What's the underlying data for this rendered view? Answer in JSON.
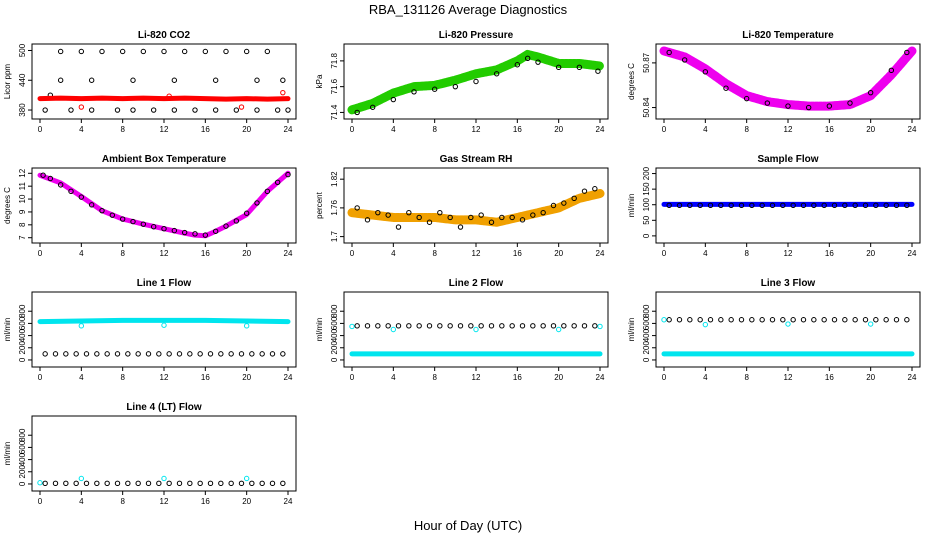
{
  "figure": {
    "title": "RBA_131126  Average Diagnostics",
    "xlabel": "Hour of Day (UTC)"
  },
  "chart_data": [
    {
      "type": "scatter",
      "title": "Li-820 CO2",
      "ylabel": "Licor ppm",
      "xlim": [
        0,
        24
      ],
      "ylim": [
        370,
        505
      ],
      "xticks": [
        0,
        4,
        8,
        12,
        16,
        20,
        24
      ],
      "yticks": [
        380,
        440,
        500
      ],
      "series": [
        {
          "color": "#000000",
          "marker": "open-circle",
          "x": [
            0.5,
            1.0,
            2.0,
            3.0,
            4.0,
            5.0,
            6.0,
            7.5,
            8.0,
            9.0,
            10.0,
            11.0,
            12.0,
            13.0,
            14.0,
            15.0,
            16.0,
            17.0,
            18.0,
            19.0,
            20.0,
            21.0,
            22.0,
            23.0,
            24.0,
            2.0,
            5.0,
            9.0,
            13.0,
            17.0,
            21.0,
            23.5
          ],
          "y": [
            380,
            410,
            498,
            380,
            498,
            380,
            498,
            380,
            498,
            380,
            498,
            380,
            498,
            380,
            498,
            380,
            498,
            380,
            498,
            380,
            498,
            380,
            498,
            380,
            380,
            440,
            440,
            440,
            440,
            440,
            440,
            440
          ]
        },
        {
          "color": "#ff0000",
          "marker": "filled-line",
          "x": [
            0,
            2,
            4,
            6,
            8,
            10,
            12,
            14,
            16,
            18,
            20,
            22,
            24
          ],
          "y": [
            403,
            404,
            403,
            404,
            403,
            404,
            403,
            404,
            403,
            402,
            403,
            402,
            403
          ]
        },
        {
          "color": "#ff0000",
          "marker": "open-circle",
          "x": [
            4.0,
            12.5,
            19.5,
            23.5
          ],
          "y": [
            386,
            408,
            386,
            415
          ]
        }
      ]
    },
    {
      "type": "scatter",
      "title": "Li-820 Pressure",
      "ylabel": "kPa",
      "xlim": [
        0,
        24
      ],
      "ylim": [
        71.38,
        71.9
      ],
      "xticks": [
        0,
        4,
        8,
        12,
        16,
        20,
        24
      ],
      "yticks": [
        71.4,
        71.6,
        71.8
      ],
      "series": [
        {
          "color": "#22cc00",
          "marker": "filled-band",
          "x": [
            0,
            2,
            4,
            6,
            8,
            10,
            12,
            14,
            16,
            17,
            18,
            20,
            22,
            24
          ],
          "y": [
            71.42,
            71.47,
            71.55,
            71.6,
            71.61,
            71.65,
            71.7,
            71.73,
            71.8,
            71.85,
            71.83,
            71.78,
            71.78,
            71.76
          ]
        },
        {
          "color": "#000000",
          "marker": "open-circle",
          "x": [
            0.5,
            2,
            4,
            6,
            8,
            10,
            12,
            14,
            16,
            17,
            18,
            20,
            22,
            23.8
          ],
          "y": [
            71.4,
            71.44,
            71.5,
            71.56,
            71.58,
            71.6,
            71.64,
            71.7,
            71.77,
            71.82,
            71.79,
            71.75,
            71.75,
            71.72
          ]
        }
      ]
    },
    {
      "type": "scatter",
      "title": "Li-820 Temperature",
      "ylabel": "degrees C",
      "xlim": [
        0,
        24
      ],
      "ylim": [
        50.835,
        50.88
      ],
      "xticks": [
        0,
        4,
        8,
        12,
        16,
        20,
        24
      ],
      "yticks": [
        50.84,
        50.87
      ],
      "series": [
        {
          "color": "#ee00ee",
          "marker": "filled-band",
          "x": [
            0,
            2,
            4,
            6,
            8,
            10,
            12,
            14,
            16,
            18,
            20,
            22,
            24
          ],
          "y": [
            50.878,
            50.874,
            50.866,
            50.856,
            50.848,
            50.844,
            50.842,
            50.841,
            50.841,
            50.842,
            50.848,
            50.862,
            50.878
          ]
        },
        {
          "color": "#000000",
          "marker": "open-circle",
          "x": [
            0.5,
            2,
            4,
            6,
            8,
            10,
            12,
            14,
            16,
            18,
            20,
            22,
            23.5
          ],
          "y": [
            50.877,
            50.872,
            50.864,
            50.853,
            50.846,
            50.843,
            50.841,
            50.84,
            50.841,
            50.843,
            50.85,
            50.865,
            50.877
          ]
        }
      ]
    },
    {
      "type": "scatter",
      "title": "Ambient Box Temperature",
      "ylabel": "degrees C",
      "xlim": [
        0,
        24
      ],
      "ylim": [
        6.9,
        12.1
      ],
      "xticks": [
        0,
        4,
        8,
        12,
        16,
        20,
        24
      ],
      "yticks": [
        7,
        8,
        9,
        10,
        11,
        12
      ],
      "series": [
        {
          "color": "#ee00ee",
          "marker": "filled-line",
          "x": [
            0,
            2,
            4,
            6,
            8,
            10,
            12,
            14,
            15,
            16,
            17,
            18,
            20,
            22,
            24
          ],
          "y": [
            11.85,
            11.25,
            10.2,
            9.1,
            8.45,
            8.05,
            7.7,
            7.35,
            7.2,
            7.15,
            7.5,
            7.9,
            8.8,
            10.6,
            12.0
          ]
        },
        {
          "color": "#000000",
          "marker": "open-circle",
          "x": [
            0.3,
            1,
            2,
            3,
            4,
            5,
            6,
            7,
            8,
            9,
            10,
            11,
            12,
            13,
            14,
            15,
            16,
            17,
            18,
            19,
            20,
            21,
            22,
            23,
            24
          ],
          "y": [
            11.85,
            11.6,
            11.1,
            10.6,
            10.15,
            9.55,
            9.1,
            8.75,
            8.45,
            8.25,
            8.05,
            7.85,
            7.7,
            7.55,
            7.4,
            7.3,
            7.2,
            7.5,
            7.9,
            8.3,
            8.9,
            9.7,
            10.6,
            11.3,
            11.9
          ]
        }
      ]
    },
    {
      "type": "scatter",
      "title": "Gas Stream RH",
      "ylabel": "percent",
      "xlim": [
        0,
        24
      ],
      "ylim": [
        1.695,
        1.835
      ],
      "xticks": [
        0,
        4,
        8,
        12,
        16,
        20,
        24
      ],
      "yticks": [
        1.7,
        1.76,
        1.82
      ],
      "series": [
        {
          "color": "#f0a000",
          "marker": "filled-band",
          "x": [
            0,
            2,
            4,
            6,
            8,
            10,
            12,
            14,
            16,
            18,
            20,
            22,
            24
          ],
          "y": [
            1.75,
            1.745,
            1.74,
            1.74,
            1.74,
            1.735,
            1.735,
            1.73,
            1.74,
            1.75,
            1.76,
            1.78,
            1.79
          ]
        },
        {
          "color": "#000000",
          "marker": "open-circle",
          "x": [
            0.5,
            1.5,
            2.5,
            3.5,
            4.5,
            5.5,
            6.5,
            7.5,
            8.5,
            9.5,
            10.5,
            11.5,
            12.5,
            13.5,
            14.5,
            15.5,
            16.5,
            17.5,
            18.5,
            19.5,
            20.5,
            21.5,
            22.5,
            23.5
          ],
          "y": [
            1.76,
            1.735,
            1.75,
            1.745,
            1.72,
            1.75,
            1.74,
            1.73,
            1.75,
            1.74,
            1.72,
            1.74,
            1.745,
            1.73,
            1.74,
            1.74,
            1.735,
            1.745,
            1.75,
            1.765,
            1.77,
            1.78,
            1.795,
            1.8
          ]
        }
      ]
    },
    {
      "type": "scatter",
      "title": "Sample Flow",
      "ylabel": "ml/min",
      "xlim": [
        0,
        24
      ],
      "ylim": [
        -10,
        205
      ],
      "xticks": [
        0,
        4,
        8,
        12,
        16,
        20,
        24
      ],
      "yticks": [
        0,
        50,
        100,
        150,
        200
      ],
      "series": [
        {
          "color": "#0000ff",
          "marker": "filled-line",
          "x": [
            0,
            24
          ],
          "y": [
            101,
            101
          ]
        },
        {
          "color": "#000000",
          "marker": "open-circle",
          "x": [
            0.5,
            1.5,
            2.5,
            3.5,
            4.5,
            5.5,
            6.5,
            7.5,
            8.5,
            9.5,
            10.5,
            11.5,
            12.5,
            13.5,
            14.5,
            15.5,
            16.5,
            17.5,
            18.5,
            19.5,
            20.5,
            21.5,
            22.5,
            23.5
          ],
          "y": [
            98,
            98,
            98,
            98,
            98,
            98,
            98,
            98,
            98,
            98,
            98,
            98,
            98,
            98,
            98,
            98,
            98,
            98,
            98,
            98,
            98,
            98,
            98,
            98
          ]
        }
      ]
    },
    {
      "type": "scatter",
      "title": "Line 1 Flow",
      "ylabel": "ml/min",
      "xlim": [
        0,
        24
      ],
      "ylim": [
        -50,
        1050
      ],
      "xticks": [
        0,
        4,
        8,
        12,
        16,
        20,
        24
      ],
      "yticks": [
        0,
        200,
        400,
        600,
        800
      ],
      "series": [
        {
          "color": "#00e5ee",
          "marker": "filled-line",
          "x": [
            0,
            4,
            8,
            12,
            16,
            20,
            24
          ],
          "y": [
            630,
            640,
            650,
            650,
            650,
            640,
            630
          ]
        },
        {
          "color": "#00e5ee",
          "marker": "open-circle",
          "x": [
            4,
            12,
            20
          ],
          "y": [
            560,
            570,
            560
          ]
        },
        {
          "color": "#000000",
          "marker": "open-circle",
          "x": [
            0.5,
            1.5,
            2.5,
            3.5,
            4.5,
            5.5,
            6.5,
            7.5,
            8.5,
            9.5,
            10.5,
            11.5,
            12.5,
            13.5,
            14.5,
            15.5,
            16.5,
            17.5,
            18.5,
            19.5,
            20.5,
            21.5,
            22.5,
            23.5
          ],
          "y": [
            100,
            100,
            100,
            100,
            100,
            100,
            100,
            100,
            100,
            100,
            100,
            100,
            100,
            100,
            100,
            100,
            100,
            100,
            100,
            100,
            100,
            100,
            100,
            100
          ]
        }
      ]
    },
    {
      "type": "scatter",
      "title": "Line 2 Flow",
      "ylabel": "ml/min",
      "xlim": [
        0,
        24
      ],
      "ylim": [
        -50,
        1050
      ],
      "xticks": [
        0,
        4,
        8,
        12,
        16,
        20,
        24
      ],
      "yticks": [
        0,
        200,
        400,
        600,
        800
      ],
      "series": [
        {
          "color": "#00e5ee",
          "marker": "filled-line",
          "x": [
            0,
            24
          ],
          "y": [
            100,
            100
          ]
        },
        {
          "color": "#00e5ee",
          "marker": "open-circle",
          "x": [
            0,
            4,
            12,
            20,
            24
          ],
          "y": [
            550,
            500,
            500,
            500,
            550
          ]
        },
        {
          "color": "#000000",
          "marker": "open-circle",
          "x": [
            0.5,
            1.5,
            2.5,
            3.5,
            4.5,
            5.5,
            6.5,
            7.5,
            8.5,
            9.5,
            10.5,
            11.5,
            12.5,
            13.5,
            14.5,
            15.5,
            16.5,
            17.5,
            18.5,
            19.5,
            20.5,
            21.5,
            22.5,
            23.5
          ],
          "y": [
            560,
            560,
            560,
            560,
            560,
            560,
            560,
            560,
            560,
            560,
            560,
            560,
            560,
            560,
            560,
            560,
            560,
            560,
            560,
            560,
            560,
            560,
            560,
            560
          ]
        }
      ]
    },
    {
      "type": "scatter",
      "title": "Line 3 Flow",
      "ylabel": "ml/min",
      "xlim": [
        0,
        24
      ],
      "ylim": [
        -50,
        1050
      ],
      "xticks": [
        0,
        4,
        8,
        12,
        16,
        20,
        24
      ],
      "yticks": [
        0,
        200,
        400,
        600,
        800
      ],
      "series": [
        {
          "color": "#00e5ee",
          "marker": "filled-line",
          "x": [
            0,
            24
          ],
          "y": [
            100,
            100
          ]
        },
        {
          "color": "#00e5ee",
          "marker": "open-circle",
          "x": [
            0,
            4,
            12,
            20
          ],
          "y": [
            660,
            580,
            590,
            590
          ]
        },
        {
          "color": "#000000",
          "marker": "open-circle",
          "x": [
            0.5,
            1.5,
            2.5,
            3.5,
            4.5,
            5.5,
            6.5,
            7.5,
            8.5,
            9.5,
            10.5,
            11.5,
            12.5,
            13.5,
            14.5,
            15.5,
            16.5,
            17.5,
            18.5,
            19.5,
            20.5,
            21.5,
            22.5,
            23.5
          ],
          "y": [
            660,
            660,
            660,
            660,
            660,
            660,
            660,
            660,
            660,
            660,
            660,
            660,
            660,
            660,
            660,
            660,
            660,
            660,
            660,
            660,
            660,
            660,
            660,
            660
          ]
        }
      ]
    },
    {
      "type": "scatter",
      "title": "Line 4 (LT) Flow",
      "ylabel": "ml/min",
      "xlim": [
        0,
        24
      ],
      "ylim": [
        -50,
        1050
      ],
      "xticks": [
        0,
        4,
        8,
        12,
        16,
        20,
        24
      ],
      "yticks": [
        0,
        200,
        400,
        600,
        800
      ],
      "series": [
        {
          "color": "#00e5ee",
          "marker": "open-circle",
          "x": [
            0,
            4,
            12,
            20
          ],
          "y": [
            20,
            90,
            90,
            90
          ]
        },
        {
          "color": "#000000",
          "marker": "open-circle",
          "x": [
            0.5,
            1.5,
            2.5,
            3.5,
            4.5,
            5.5,
            6.5,
            7.5,
            8.5,
            9.5,
            10.5,
            11.5,
            12.5,
            13.5,
            14.5,
            15.5,
            16.5,
            17.5,
            18.5,
            19.5,
            20.5,
            21.5,
            22.5,
            23.5
          ],
          "y": [
            10,
            10,
            10,
            10,
            10,
            10,
            10,
            10,
            10,
            10,
            10,
            10,
            10,
            10,
            10,
            10,
            10,
            10,
            10,
            10,
            10,
            10,
            10,
            10
          ]
        }
      ]
    }
  ]
}
